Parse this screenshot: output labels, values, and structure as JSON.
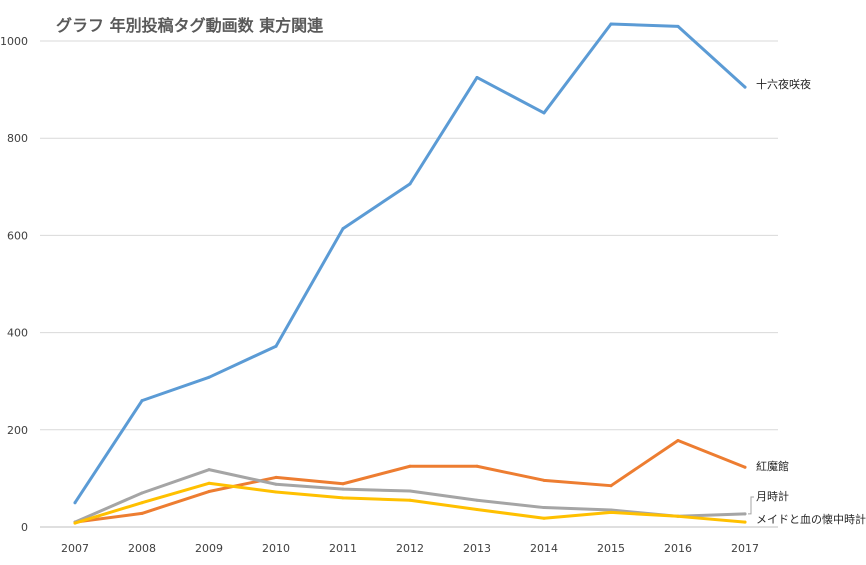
{
  "chart_data": {
    "type": "line",
    "title": "グラフ 年別投稿タグ動画数 東方関連",
    "xlabel": "",
    "ylabel": "",
    "x": [
      "2007",
      "2008",
      "2009",
      "2010",
      "2011",
      "2012",
      "2013",
      "2014",
      "2015",
      "2016",
      "2017"
    ],
    "ylim": [
      0,
      1000
    ],
    "yticks": [
      0,
      200,
      400,
      600,
      800,
      1000
    ],
    "grid": true,
    "legend": "end-of-line labels",
    "series": [
      {
        "name": "十六夜咲夜",
        "color": "#5b9bd5",
        "values": [
          50,
          260,
          308,
          372,
          614,
          706,
          925,
          852,
          1035,
          1030,
          905
        ]
      },
      {
        "name": "紅魔館",
        "color": "#ed7d31",
        "values": [
          10,
          28,
          73,
          102,
          89,
          125,
          125,
          96,
          85,
          178,
          123
        ]
      },
      {
        "name": "月時計",
        "color": "#a5a5a5",
        "values": [
          10,
          70,
          118,
          88,
          78,
          74,
          55,
          40,
          35,
          22,
          27
        ]
      },
      {
        "name": "メイドと血の懐中時計",
        "color": "#ffc000",
        "values": [
          8,
          50,
          90,
          72,
          60,
          55,
          36,
          18,
          30,
          22,
          10
        ]
      }
    ]
  }
}
